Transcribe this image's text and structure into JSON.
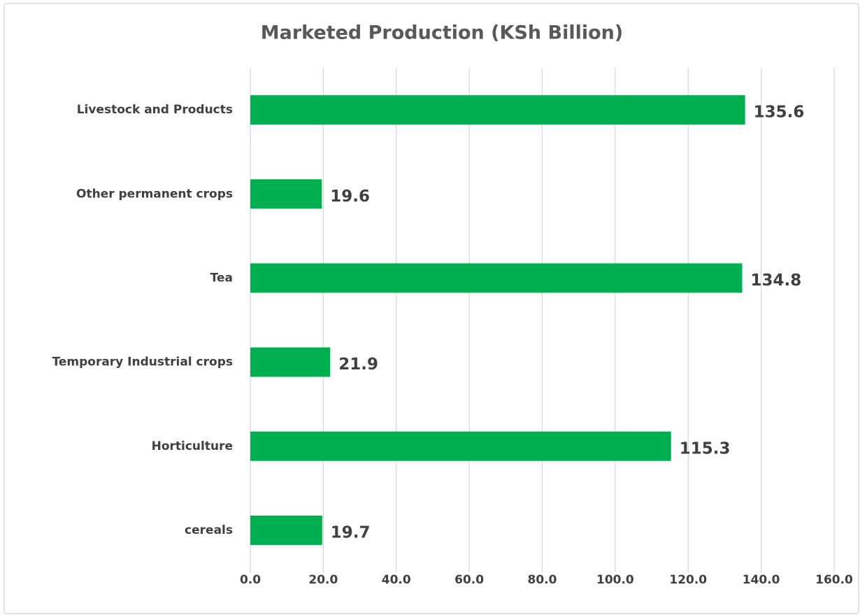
{
  "chart_data": {
    "type": "bar",
    "orientation": "horizontal",
    "title": "Marketed Production (KSh Billion)",
    "categories": [
      "Livestock and Products",
      "Other permanent crops",
      "Tea",
      "Temporary Industrial crops",
      "Horticulture",
      "cereals"
    ],
    "values": [
      135.6,
      19.6,
      134.8,
      21.9,
      115.3,
      19.7
    ],
    "color": "#00b050",
    "xlim": [
      0,
      160
    ],
    "xticks": [
      {
        "value": 0,
        "label": "0.0"
      },
      {
        "value": 20,
        "label": "20.0"
      },
      {
        "value": 40,
        "label": "40.0"
      },
      {
        "value": 60,
        "label": "60.0"
      },
      {
        "value": 80,
        "label": "80.0"
      },
      {
        "value": 100,
        "label": "100.0"
      },
      {
        "value": 120,
        "label": "120.0"
      },
      {
        "value": 140,
        "label": "140.0"
      },
      {
        "value": 160,
        "label": "160.0"
      }
    ],
    "grid": true
  }
}
